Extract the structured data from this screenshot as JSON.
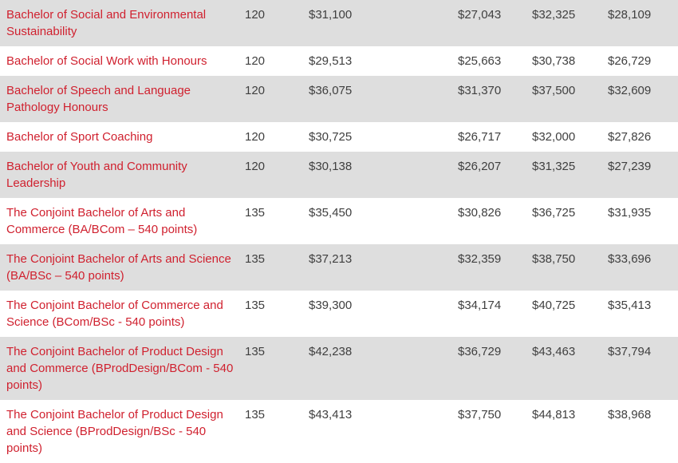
{
  "colors": {
    "link_red": "#d0212f",
    "row_alt_bg": "#dedede",
    "row_bg": "#ffffff",
    "value_text": "#3f3f3f"
  },
  "table": {
    "rows": [
      {
        "programme": "Bachelor of Social and Environmental Sustainability",
        "points": "120",
        "fees": [
          "$31,100",
          "$27,043",
          "$32,325",
          "$28,109"
        ]
      },
      {
        "programme": "Bachelor of Social Work with Honours",
        "points": "120",
        "fees": [
          "$29,513",
          "$25,663",
          "$30,738",
          "$26,729"
        ]
      },
      {
        "programme": "Bachelor of Speech and Language Pathology Honours",
        "points": "120",
        "fees": [
          "$36,075",
          "$31,370",
          "$37,500",
          "$32,609"
        ]
      },
      {
        "programme": "Bachelor of Sport Coaching",
        "points": "120",
        "fees": [
          "$30,725",
          "$26,717",
          "$32,000",
          "$27,826"
        ]
      },
      {
        "programme": "Bachelor of Youth and Community Leadership",
        "points": "120",
        "fees": [
          "$30,138",
          "$26,207",
          "$31,325",
          "$27,239"
        ]
      },
      {
        "programme": "The Conjoint Bachelor of Arts and Commerce (BA/BCom – 540 points)",
        "points": "135",
        "fees": [
          "$35,450",
          "$30,826",
          "$36,725",
          "$31,935"
        ]
      },
      {
        "programme": "The Conjoint Bachelor of Arts and Science (BA/BSc – 540 points)",
        "points": "135",
        "fees": [
          "$37,213",
          "$32,359",
          "$38,750",
          "$33,696"
        ]
      },
      {
        "programme": "The Conjoint Bachelor of Commerce and Science (BCom/BSc - 540 points)",
        "points": "135",
        "fees": [
          "$39,300",
          "$34,174",
          "$40,725",
          "$35,413"
        ]
      },
      {
        "programme": "The Conjoint Bachelor of Product Design and Commerce (BProdDesign/BCom - 540 points)",
        "points": "135",
        "fees": [
          "$42,238",
          "$36,729",
          "$43,463",
          "$37,794"
        ]
      },
      {
        "programme": "The Conjoint Bachelor of Product Design and Science (BProdDesign/BSc - 540 points)",
        "points": "135",
        "fees": [
          "$43,413",
          "$37,750",
          "$44,813",
          "$38,968"
        ]
      }
    ]
  }
}
